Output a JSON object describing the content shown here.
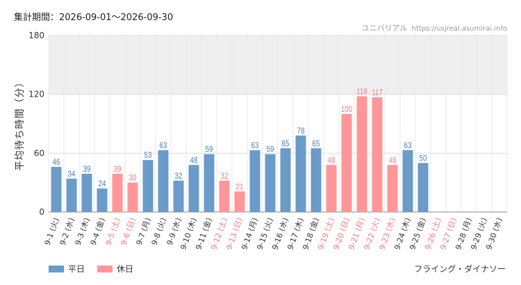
{
  "header": {
    "period_label": "集計期間：2026-09-01～2026-09-30",
    "site_name": "ユニバリアル",
    "site_url": "https://usjreal.asumirai.info"
  },
  "footer": {
    "attraction_name": "フライング・ダイナソー"
  },
  "colors": {
    "weekday": "#6b9bc8",
    "holiday": "#ff9699",
    "weekday_label": "#4a7fb5",
    "holiday_label": "#f07a7e",
    "band": "#efefef"
  },
  "chart_data": {
    "type": "bar",
    "ylabel": "平均待ち時間（分）",
    "ylim": [
      0,
      180
    ],
    "yticks": [
      0,
      60,
      120,
      180
    ],
    "shaded_band": [
      120,
      180
    ],
    "grid": true,
    "legend_position": "bottom-left",
    "categories": [
      "9-1 (火)",
      "9-2 (水)",
      "9-3 (木)",
      "9-4 (金)",
      "9-5 (土)",
      "9-6 (日)",
      "9-7 (月)",
      "9-8 (火)",
      "9-9 (水)",
      "9-10 (木)",
      "9-11 (金)",
      "9-12 (土)",
      "9-13 (日)",
      "9-14 (月)",
      "9-15 (火)",
      "9-16 (水)",
      "9-17 (木)",
      "9-18 (金)",
      "9-19 (土)",
      "9-20 (日)",
      "9-21 (月)",
      "9-22 (火)",
      "9-23 (水)",
      "9-24 (木)",
      "9-25 (金)",
      "9-26 (土)",
      "9-27 (日)",
      "9-28 (月)",
      "9-29 (火)",
      "9-30 (水)"
    ],
    "values": [
      46,
      34,
      39,
      24,
      39,
      30,
      53,
      63,
      32,
      48,
      59,
      32,
      21,
      63,
      59,
      65,
      78,
      65,
      48,
      100,
      118,
      117,
      48,
      63,
      50,
      null,
      null,
      null,
      null,
      null
    ],
    "day_types": [
      "weekday",
      "weekday",
      "weekday",
      "weekday",
      "holiday",
      "holiday",
      "weekday",
      "weekday",
      "weekday",
      "weekday",
      "weekday",
      "holiday",
      "holiday",
      "weekday",
      "weekday",
      "weekday",
      "weekday",
      "weekday",
      "holiday",
      "holiday",
      "holiday",
      "holiday",
      "holiday",
      "weekday",
      "weekday",
      "holiday",
      "holiday",
      "weekday",
      "weekday",
      "weekday"
    ],
    "legend": [
      {
        "key": "weekday",
        "label": "平日"
      },
      {
        "key": "holiday",
        "label": "休日"
      }
    ]
  }
}
